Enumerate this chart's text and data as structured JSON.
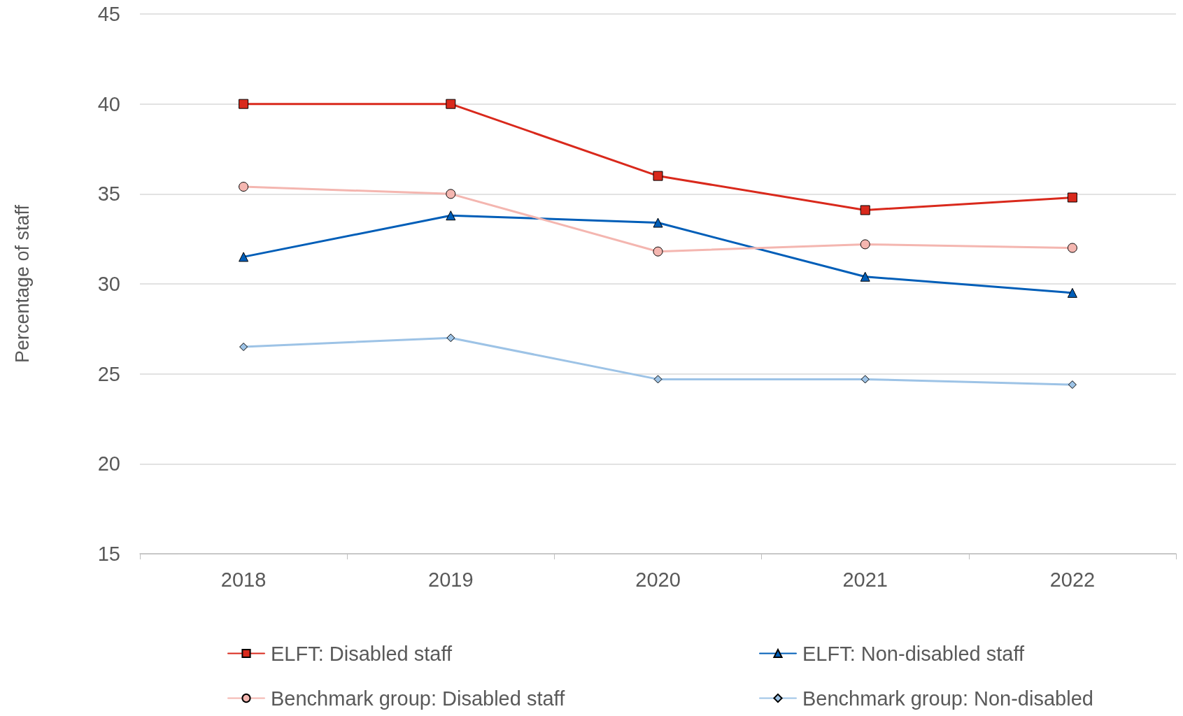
{
  "chart_data": {
    "type": "line",
    "ylabel": "Percentage of staff",
    "categories": [
      "2018",
      "2019",
      "2020",
      "2021",
      "2022"
    ],
    "ylim": [
      15,
      45
    ],
    "yticks": [
      15,
      20,
      25,
      30,
      35,
      40,
      45
    ],
    "grid": "y",
    "legend": "bottom",
    "line_style": "solid",
    "series": [
      {
        "name": "ELFT: Disabled staff",
        "color": "#d9291c",
        "marker": "square",
        "values": [
          40,
          40,
          36,
          34.1,
          34.8
        ]
      },
      {
        "name": "ELFT: Non-disabled staff",
        "color": "#005eb8",
        "marker": "triangle",
        "values": [
          31.5,
          33.8,
          33.4,
          30.4,
          29.5
        ]
      },
      {
        "name": "Benchmark group: Disabled staff",
        "color": "#f4b6b0",
        "marker": "circle",
        "values": [
          35.4,
          35,
          31.8,
          32.2,
          32
        ]
      },
      {
        "name": "Benchmark group: Non-disabled",
        "color": "#9dc3e6",
        "marker": "diamond",
        "values": [
          26.5,
          27,
          24.7,
          24.7,
          24.4
        ]
      }
    ]
  }
}
